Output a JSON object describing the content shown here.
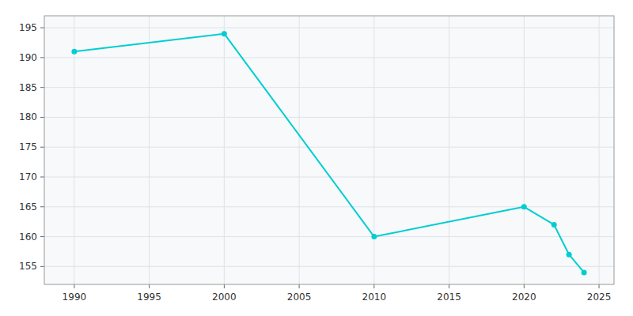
{
  "chart_data": {
    "type": "line",
    "x": [
      1990,
      2000,
      2010,
      2020,
      2022,
      2023,
      2024
    ],
    "values": [
      191,
      194,
      160,
      165,
      162,
      157,
      154
    ],
    "color": "#00CED1",
    "marker": "circle",
    "xlim": [
      1988,
      2026
    ],
    "ylim": [
      152,
      197
    ],
    "xticks": [
      1990,
      1995,
      2000,
      2005,
      2010,
      2015,
      2020,
      2025
    ],
    "yticks": [
      155,
      160,
      165,
      170,
      175,
      180,
      185,
      190,
      195
    ],
    "grid": true
  }
}
